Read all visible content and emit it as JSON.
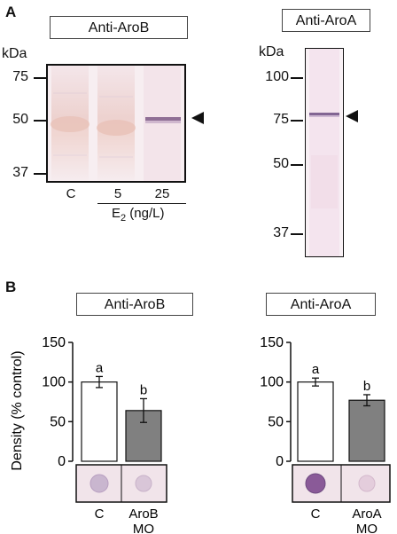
{
  "panel_a": {
    "letter": "A",
    "left_blot": {
      "antibody": "Anti-AroB",
      "unit": "kDa",
      "markers": [
        "75",
        "50",
        "37"
      ],
      "lanes": [
        "C",
        "5",
        "25"
      ],
      "condition_label": "E",
      "condition_sub": "2",
      "condition_unit": " (ng/L)"
    },
    "right_blot": {
      "antibody": "Anti-AroA",
      "unit": "kDa",
      "markers": [
        "100",
        "75",
        "50",
        "37"
      ]
    }
  },
  "panel_b": {
    "letter": "B",
    "left_chart_title": "Anti-AroB",
    "right_chart_title": "Anti-AroA"
  },
  "chart_data": [
    {
      "type": "bar",
      "title": "Anti-AroB",
      "ylabel": "Density (% control)",
      "ylim": [
        0,
        150
      ],
      "yticks": [
        "0",
        "50",
        "100",
        "150"
      ],
      "categories": [
        "C",
        "AroB MO"
      ],
      "category_lines": [
        [
          "C"
        ],
        [
          "AroB",
          "MO"
        ]
      ],
      "values": [
        100,
        64
      ],
      "errors": [
        7,
        15
      ],
      "significance": [
        "a",
        "b"
      ],
      "bar_colors": [
        "#ffffff",
        "#808080"
      ]
    },
    {
      "type": "bar",
      "title": "Anti-AroA",
      "ylabel": "",
      "ylim": [
        0,
        150
      ],
      "yticks": [
        "0",
        "50",
        "100",
        "150"
      ],
      "categories": [
        "C",
        "AroA MO"
      ],
      "category_lines": [
        [
          "C"
        ],
        [
          "AroA",
          "MO"
        ]
      ],
      "values": [
        100,
        77
      ],
      "errors": [
        5,
        7
      ],
      "significance": [
        "a",
        "b"
      ],
      "bar_colors": [
        "#ffffff",
        "#808080"
      ]
    }
  ]
}
